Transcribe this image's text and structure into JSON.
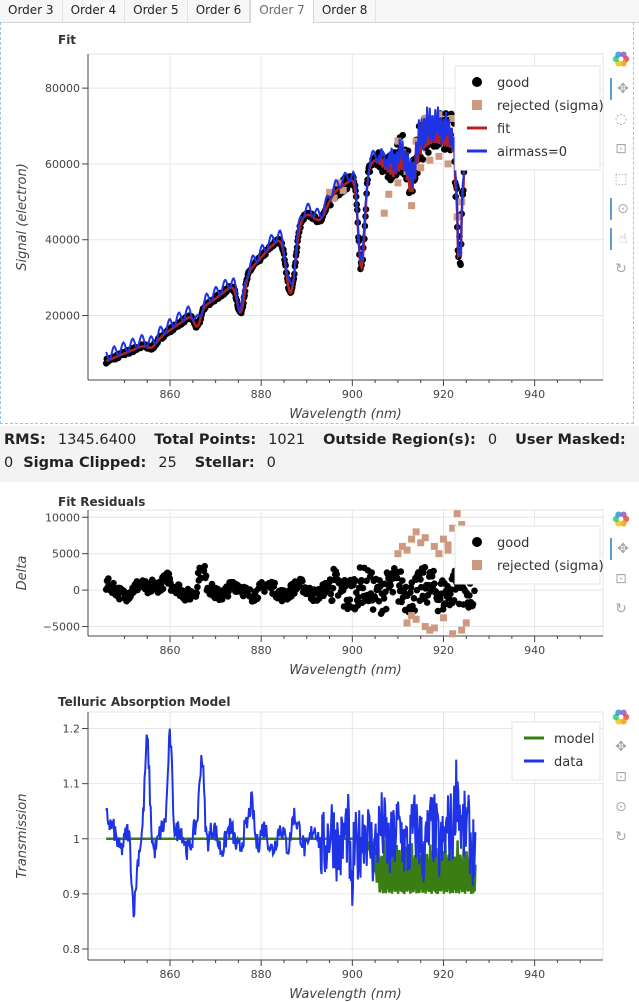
{
  "tabs": [
    "Order 3",
    "Order 4",
    "Order 5",
    "Order 6",
    "Order 7",
    "Order 8"
  ],
  "active_tab": "Order 7",
  "stats": {
    "rms_label": "RMS:",
    "rms_value": "1345.6400",
    "total_label": "Total Points:",
    "total_value": "1021",
    "outside_label": "Outside Region(s):",
    "outside_value": "0",
    "masked_label": "User Masked:",
    "masked_value": "0",
    "sigma_label": "Sigma Clipped:",
    "sigma_value": "25",
    "stellar_label": "Stellar:",
    "stellar_value": "0"
  },
  "colors": {
    "good": "#000000",
    "rejected": "#cd9a80",
    "fit": "#b22222",
    "airmass": "#1e32e6",
    "model": "#3a7d12",
    "data": "#1e32e6",
    "grid": "#e6e6e6"
  },
  "chart_data": [
    {
      "type": "scatter",
      "title": "Fit",
      "xlabel": "Wavelength (nm)",
      "ylabel": "Signal (electron)",
      "xlim": [
        842,
        955
      ],
      "ylim": [
        3000,
        89000
      ],
      "xticks": [
        860,
        880,
        900,
        920,
        940
      ],
      "yticks": [
        20000,
        40000,
        60000,
        80000
      ],
      "ytick_labels": [
        "20000",
        "40000",
        "60000",
        "80000"
      ],
      "grid": true,
      "legend_position": "top-right",
      "legend": [
        "good",
        "rejected (sigma)",
        "fit",
        "airmass=0"
      ],
      "continuum": [
        [
          846,
          8000
        ],
        [
          852,
          11000
        ],
        [
          858,
          14500
        ],
        [
          864,
          19500
        ],
        [
          870,
          24500
        ],
        [
          876,
          30000
        ],
        [
          882,
          38000
        ],
        [
          888,
          45000
        ],
        [
          894,
          51000
        ],
        [
          900,
          56000
        ],
        [
          906,
          62000
        ],
        [
          912,
          69000
        ],
        [
          918,
          74000
        ],
        [
          922,
          73000
        ],
        [
          927,
          71500
        ]
      ],
      "absorption_dips": [
        [
          866,
          3500,
          1.0
        ],
        [
          875.5,
          7500,
          1.1
        ],
        [
          886.5,
          15000,
          1.4
        ],
        [
          902,
          22000,
          1.0
        ],
        [
          913,
          8000,
          1.2
        ],
        [
          923.5,
          28000,
          0.8
        ],
        [
          856,
          1500,
          1.5
        ],
        [
          893,
          4000,
          2.0
        ]
      ],
      "rejected_points": [
        [
          907,
          47000
        ],
        [
          908,
          52000
        ],
        [
          909,
          60000
        ],
        [
          910,
          55000
        ],
        [
          911,
          63000
        ],
        [
          912,
          58000
        ],
        [
          913,
          49000
        ],
        [
          914,
          66000
        ],
        [
          915,
          59000
        ],
        [
          916,
          67000
        ],
        [
          917,
          61000
        ],
        [
          918,
          69000
        ],
        [
          919,
          62000
        ],
        [
          920,
          68000
        ],
        [
          921,
          60000
        ],
        [
          922,
          72000
        ],
        [
          923,
          46000
        ],
        [
          924,
          50000
        ],
        [
          896,
          51000
        ],
        [
          897,
          55000
        ],
        [
          898,
          53000
        ],
        [
          895,
          52500
        ],
        [
          910,
          66000
        ],
        [
          916,
          72000
        ],
        [
          919,
          73000
        ]
      ]
    },
    {
      "type": "scatter",
      "title": "Fit Residuals",
      "xlabel": "Wavelength (nm)",
      "ylabel": "Delta",
      "xlim": [
        842,
        955
      ],
      "ylim": [
        -6300,
        11000
      ],
      "xticks": [
        860,
        880,
        900,
        920,
        940
      ],
      "yticks": [
        -5000,
        0,
        5000,
        10000
      ],
      "ytick_labels": [
        "−5000",
        "0",
        "5000",
        "10000"
      ],
      "grid": true,
      "legend_position": "top-right",
      "legend": [
        "good",
        "rejected (sigma)"
      ],
      "rejected_points": [
        [
          910,
          5000
        ],
        [
          911,
          6000
        ],
        [
          912,
          5500
        ],
        [
          913,
          7000
        ],
        [
          914,
          8000
        ],
        [
          915,
          6500
        ],
        [
          916,
          -5000
        ],
        [
          917,
          -5500
        ],
        [
          918,
          6000
        ],
        [
          919,
          5000
        ],
        [
          920,
          7000
        ],
        [
          921,
          5500
        ],
        [
          922,
          -6000
        ],
        [
          923,
          10500
        ],
        [
          924,
          9000
        ],
        [
          925,
          -4500
        ],
        [
          914,
          -4000
        ],
        [
          912,
          -4500
        ],
        [
          918,
          -5200
        ],
        [
          920,
          -3800
        ],
        [
          921,
          6200
        ],
        [
          922,
          8500
        ],
        [
          916,
          7200
        ],
        [
          913,
          -3500
        ],
        [
          924,
          -5500
        ]
      ]
    },
    {
      "type": "line",
      "title": "Telluric Absorption Model",
      "xlabel": "Wavelength (nm)",
      "ylabel": "Transmission",
      "xlim": [
        842,
        955
      ],
      "ylim": [
        0.78,
        1.23
      ],
      "xticks": [
        860,
        880,
        900,
        920,
        940
      ],
      "yticks": [
        0.8,
        0.9,
        1.0,
        1.1,
        1.2
      ],
      "ytick_labels": [
        "0.8",
        "0.9",
        "1",
        "1.1",
        "1.2"
      ],
      "grid": true,
      "legend_position": "top-right",
      "legend": [
        "model",
        "data"
      ],
      "data_peaks": [
        [
          855,
          1.16
        ],
        [
          860,
          1.2
        ],
        [
          867,
          1.16
        ],
        [
          878,
          1.07
        ],
        [
          887,
          1.04
        ],
        [
          923,
          1.12
        ],
        [
          846,
          1.05
        ],
        [
          852,
          0.88
        ]
      ]
    }
  ]
}
